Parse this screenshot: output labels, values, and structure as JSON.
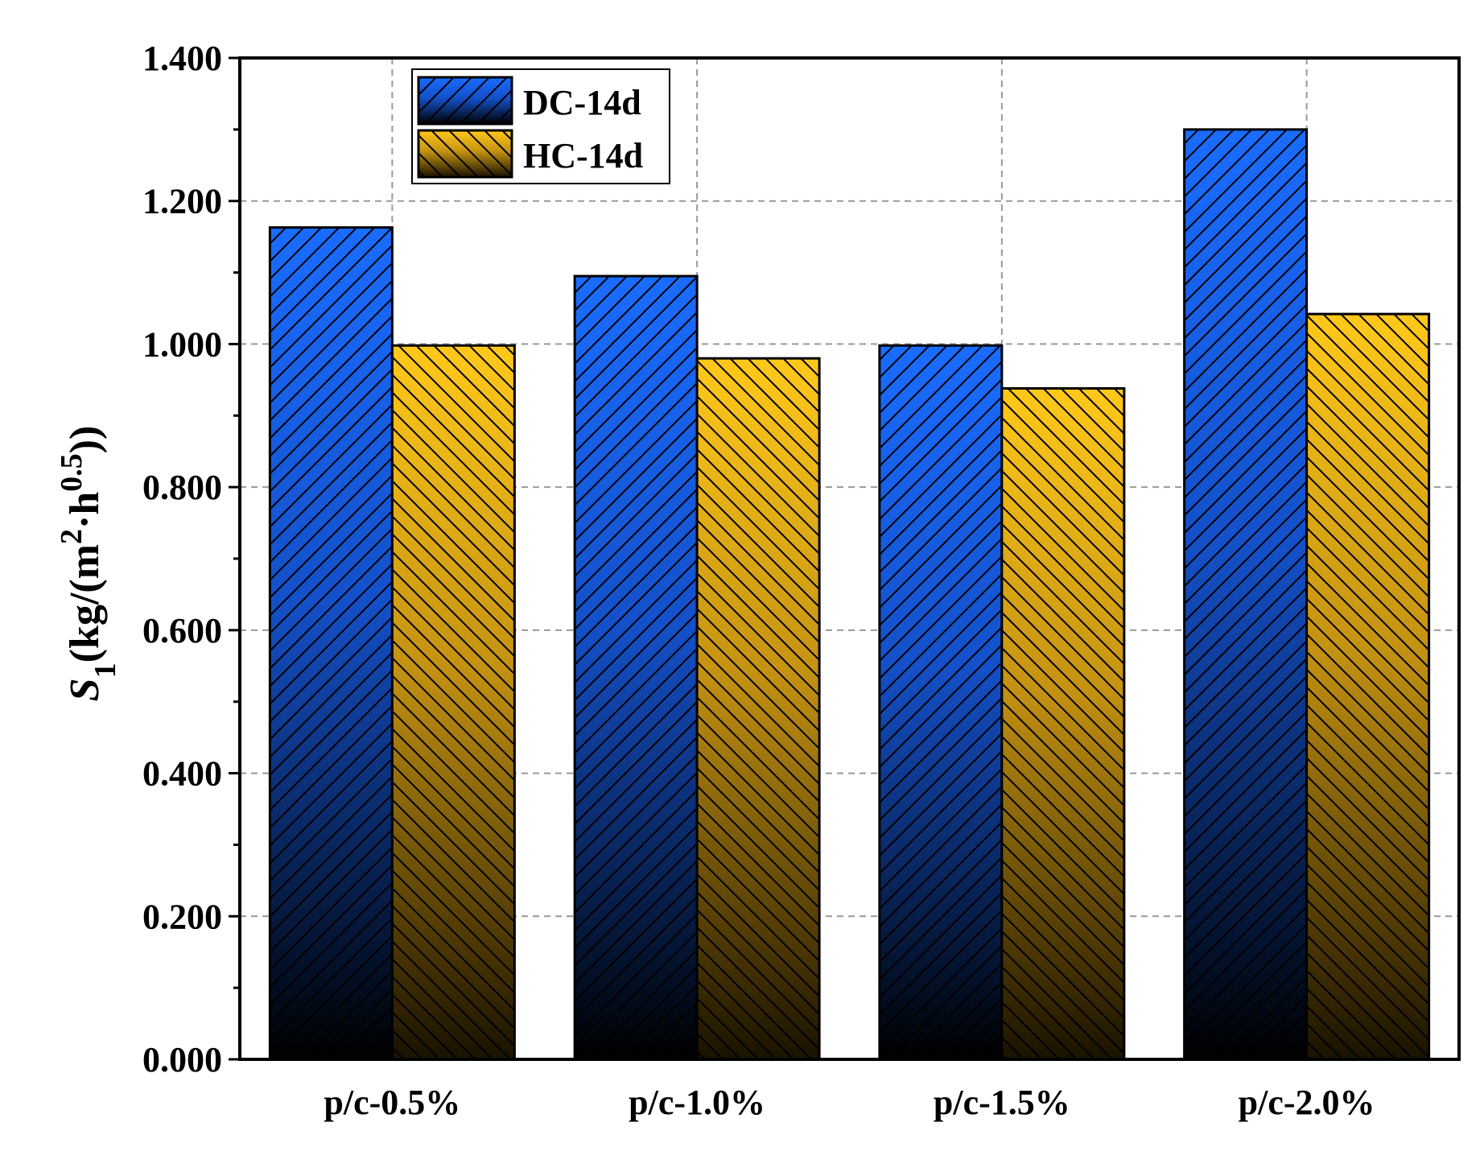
{
  "chart_data": {
    "type": "bar",
    "categories": [
      "p/c-0.5%",
      "p/c-1.0%",
      "p/c-1.5%",
      "p/c-2.0%"
    ],
    "series": [
      {
        "name": "DC-14d",
        "values": [
          1.163,
          1.095,
          0.998,
          1.3
        ],
        "color_top": "#1a6cff",
        "color_bottom": "#000000"
      },
      {
        "name": "HC-14d",
        "values": [
          0.998,
          0.98,
          0.938,
          1.042
        ],
        "color_top": "#ffc81a",
        "color_bottom": "#1a1200"
      }
    ],
    "ylim": [
      0,
      1.4
    ],
    "yticks": [
      "0.000",
      "0.200",
      "0.400",
      "0.600",
      "0.800",
      "1.000",
      "1.200",
      "1.400"
    ],
    "ytick_values": [
      0,
      0.2,
      0.4,
      0.6,
      0.8,
      1.0,
      1.2,
      1.4
    ],
    "ylabel_main": "S",
    "ylabel_sub": "1",
    "ylabel_unit_prefix": "(kg/(m",
    "ylabel_sup1": "2",
    "ylabel_mid": "·h",
    "ylabel_sup2": "0.5",
    "ylabel_suffix": "))",
    "xlabel": "",
    "title": "",
    "grid": true,
    "legend_position": "top-left"
  }
}
